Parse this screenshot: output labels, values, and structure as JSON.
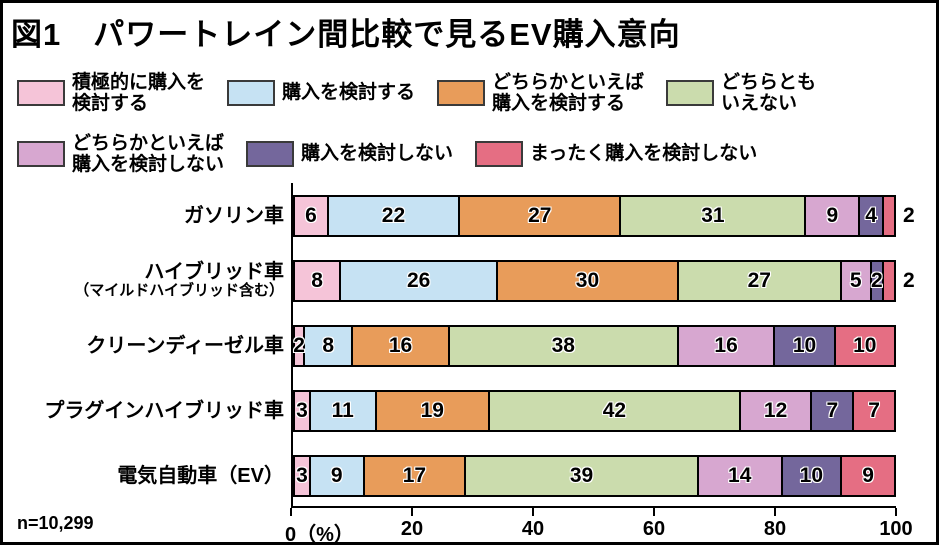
{
  "title": "図1　パワートレイン間比較で見るEV購入意向",
  "note": "n=10,299",
  "chart_data": {
    "type": "bar",
    "stacked": true,
    "orientation": "horizontal",
    "unit": "%",
    "xlim": [
      0,
      100
    ],
    "x_ticks": [
      {
        "value": 0,
        "label": "0（%）"
      },
      {
        "value": 20,
        "label": "20"
      },
      {
        "value": 40,
        "label": "40"
      },
      {
        "value": 60,
        "label": "60"
      },
      {
        "value": 80,
        "label": "80"
      },
      {
        "value": 100,
        "label": "100"
      }
    ],
    "legend_rows": [
      [
        {
          "label": "積極的に購入を\n検討する",
          "color": "#F5C4D8"
        },
        {
          "label": "購入を検討する",
          "color": "#C6E2F3"
        },
        {
          "label": "どちらかといえば\n購入を検討する",
          "color": "#E89C5A"
        },
        {
          "label": "どちらとも\nいえない",
          "color": "#CBDCAD"
        }
      ],
      [
        {
          "label": "どちらかといえば\n購入を検討しない",
          "color": "#D7A7D0"
        },
        {
          "label": "購入を検討しない",
          "color": "#74679C"
        },
        {
          "label": "まったく購入を検討しない",
          "color": "#E56E83"
        }
      ]
    ],
    "series_names": [
      "積極的に購入を検討する",
      "購入を検討する",
      "どちらかといえば購入を検討する",
      "どちらともいえない",
      "どちらかといえば購入を検討しない",
      "購入を検討しない",
      "まったく購入を検討しない"
    ],
    "colors": [
      "#F5C4D8",
      "#C6E2F3",
      "#E89C5A",
      "#CBDCAD",
      "#D7A7D0",
      "#74679C",
      "#E56E83"
    ],
    "rows": [
      {
        "label_lines": [
          "ガソリン車"
        ],
        "values": [
          6,
          22,
          27,
          31,
          9,
          4,
          2
        ],
        "outside_label_index": 6
      },
      {
        "label_lines": [
          "ハイブリッド車",
          "（マイルドハイブリッド含む）"
        ],
        "values": [
          8,
          26,
          30,
          27,
          5,
          2,
          2
        ],
        "outside_label_index": 6
      },
      {
        "label_lines": [
          "クリーンディーゼル車"
        ],
        "values": [
          2,
          8,
          16,
          38,
          16,
          10,
          10
        ],
        "outside_label_index": null
      },
      {
        "label_lines": [
          "プラグインハイブリッド車"
        ],
        "values": [
          3,
          11,
          19,
          42,
          12,
          7,
          7
        ],
        "outside_label_index": null
      },
      {
        "label_lines": [
          "電気自動車（EV）"
        ],
        "values": [
          3,
          9,
          17,
          39,
          14,
          10,
          9
        ],
        "outside_label_index": null
      }
    ]
  }
}
